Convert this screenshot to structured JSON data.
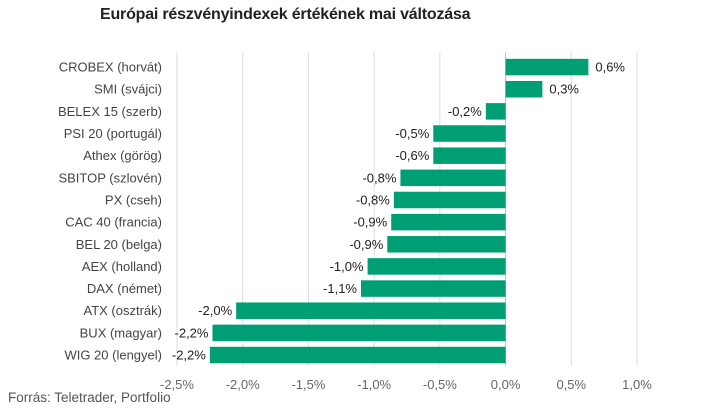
{
  "chart_data": {
    "type": "bar",
    "orientation": "horizontal",
    "title": "Európai részvényindexek értékének mai változása",
    "source": "Forrás: Teletrader, Portfolio",
    "color": "#009e73",
    "grid": true,
    "xlim": [
      -2.5,
      1.0
    ],
    "ticks": [
      -2.5,
      -2.0,
      -1.5,
      -1.0,
      -0.5,
      0.0,
      0.5,
      1.0
    ],
    "tick_labels": [
      "-2,5%",
      "-2,0%",
      "-1,5%",
      "-1,0%",
      "-0,5%",
      "0,0%",
      "0,5%",
      "1,0%"
    ],
    "categories": [
      "CROBEX (horvát)",
      "SMI (svájci)",
      "BELEX 15 (szerb)",
      "PSI 20 (portugál)",
      "Athex (görög)",
      "SBITOP (szlovén)",
      "PX (cseh)",
      "CAC 40 (francia)",
      "BEL 20 (belga)",
      "AEX (holland)",
      "DAX (német)",
      "ATX (osztrák)",
      "BUX (magyar)",
      "WIG 20 (lengyel)"
    ],
    "values": [
      0.63,
      0.28,
      -0.15,
      -0.55,
      -0.55,
      -0.8,
      -0.85,
      -0.87,
      -0.9,
      -1.05,
      -1.1,
      -2.05,
      -2.23,
      -2.25
    ],
    "value_labels": [
      "0,6%",
      "0,3%",
      "-0,2%",
      "-0,5%",
      "-0,6%",
      "-0,8%",
      "-0,8%",
      "-0,9%",
      "-0,9%",
      "-1,0%",
      "-1,1%",
      "-2,0%",
      "-2,2%",
      "-2,2%"
    ]
  }
}
